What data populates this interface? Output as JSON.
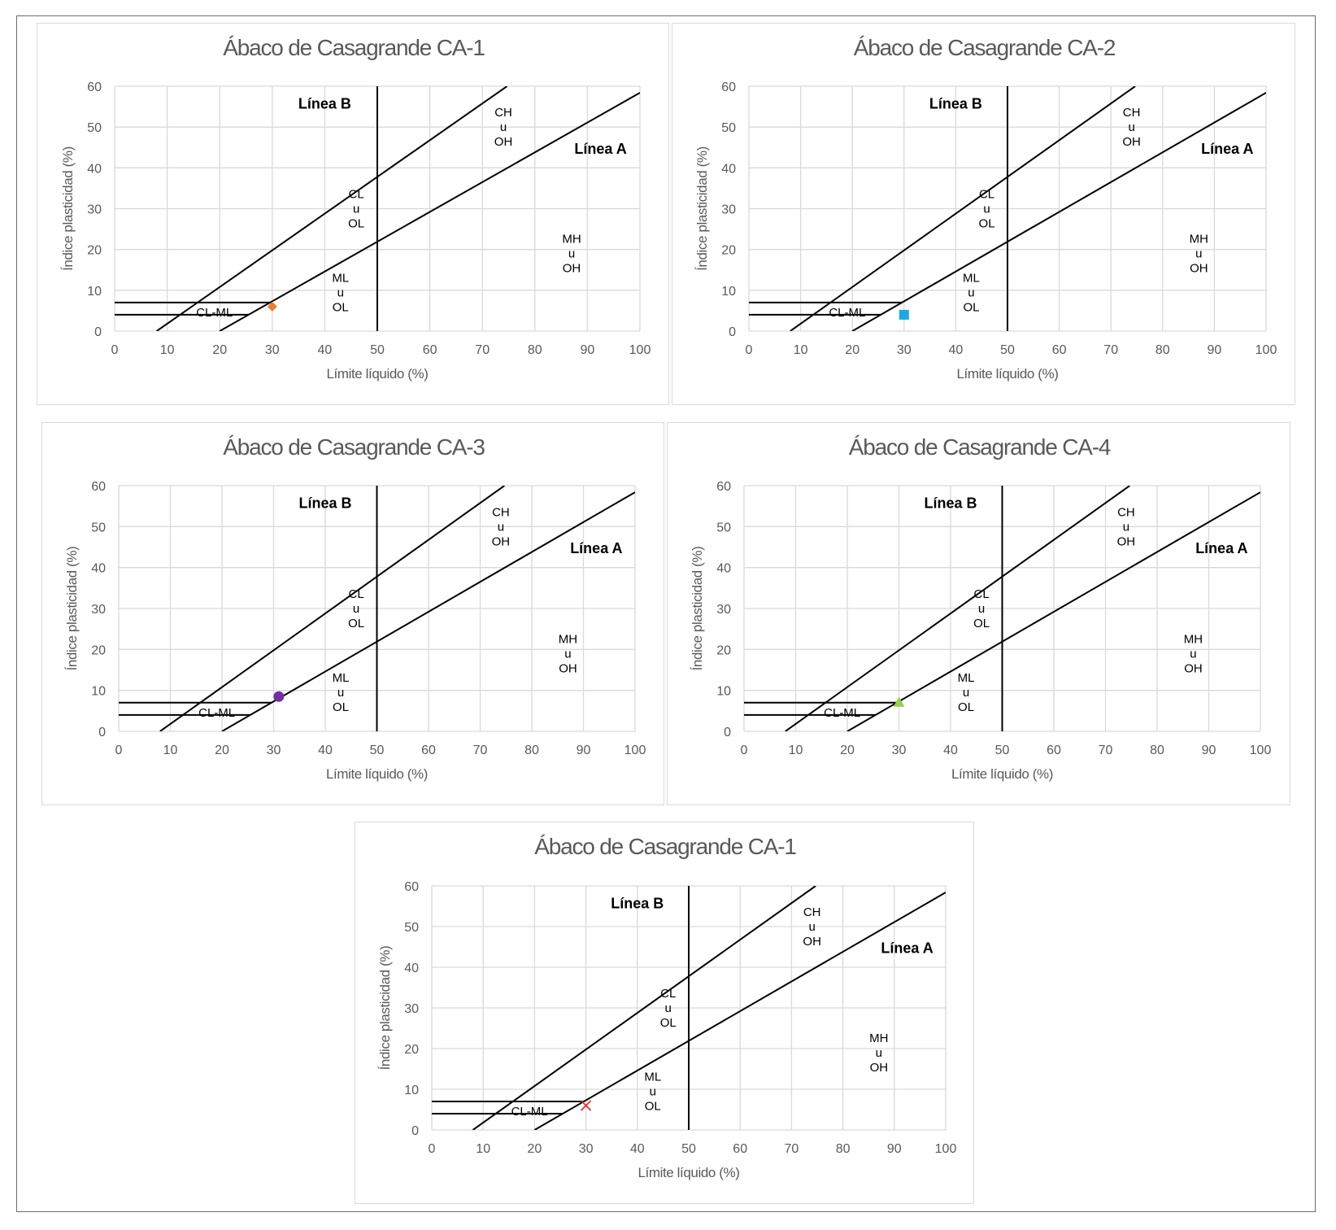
{
  "axes": {
    "xlabel": "Límite líquido (%)",
    "ylabel": "Índice plasticidad (%)",
    "xlim": [
      0,
      100
    ],
    "ylim": [
      0,
      60
    ],
    "xticks": [
      "0",
      "10",
      "20",
      "30",
      "40",
      "50",
      "60",
      "70",
      "80",
      "90",
      "100"
    ],
    "yticks": [
      "0",
      "10",
      "20",
      "30",
      "40",
      "50",
      "60"
    ]
  },
  "reference_lines": {
    "line_a_label": "Línea A",
    "line_b_label": "Línea B",
    "line_a": [
      [
        20,
        0
      ],
      [
        100,
        58.4
      ]
    ],
    "upper_u_line": [
      [
        8,
        0
      ],
      [
        74.7,
        60
      ]
    ],
    "line_b": [
      [
        50,
        0
      ],
      [
        50,
        60
      ]
    ],
    "cl_ml_upper": [
      [
        0,
        7
      ],
      [
        29.6,
        7
      ]
    ],
    "cl_ml_lower": [
      [
        0,
        4
      ],
      [
        25.5,
        4
      ]
    ]
  },
  "zones": [
    {
      "id": "ch-oh",
      "lines": [
        "CH",
        "u",
        "OH"
      ],
      "at": [
        74,
        50
      ]
    },
    {
      "id": "cl-ol",
      "lines": [
        "CL",
        "u",
        "OL"
      ],
      "at": [
        46,
        30
      ]
    },
    {
      "id": "mh-oh",
      "lines": [
        "MH",
        "u",
        "OH"
      ],
      "at": [
        87,
        19
      ]
    },
    {
      "id": "ml-ol",
      "lines": [
        "ML",
        "u",
        "OL"
      ],
      "at": [
        43,
        9.5
      ]
    },
    {
      "id": "cl-ml",
      "lines": [
        "CL-ML"
      ],
      "at": [
        19,
        4.6
      ]
    }
  ],
  "chart_data": [
    {
      "type": "scatter",
      "title": "Ábaco de Casagrande CA-1",
      "xlabel": "Límite líquido (%)",
      "ylabel": "Índice plasticidad (%)",
      "xlim": [
        0,
        100
      ],
      "ylim": [
        0,
        60
      ],
      "grid": true,
      "points": [
        {
          "x": 30,
          "y": 6
        }
      ],
      "marker": "diamond",
      "color": "#ED7D31"
    },
    {
      "type": "scatter",
      "title": "Ábaco de Casagrande CA-2",
      "xlabel": "Límite líquido (%)",
      "ylabel": "Índice plasticidad (%)",
      "xlim": [
        0,
        100
      ],
      "ylim": [
        0,
        60
      ],
      "grid": true,
      "points": [
        {
          "x": 30,
          "y": 4
        }
      ],
      "marker": "square",
      "color": "#1CA8E0"
    },
    {
      "type": "scatter",
      "title": "Ábaco de Casagrande CA-3",
      "xlabel": "Límite líquido (%)",
      "ylabel": "Índice plasticidad (%)",
      "xlim": [
        0,
        100
      ],
      "ylim": [
        0,
        60
      ],
      "grid": true,
      "points": [
        {
          "x": 31,
          "y": 8.5
        }
      ],
      "marker": "circle",
      "color": "#7030A0"
    },
    {
      "type": "scatter",
      "title": "Ábaco de Casagrande CA-4",
      "xlabel": "Límite líquido (%)",
      "ylabel": "Índice plasticidad (%)",
      "xlim": [
        0,
        100
      ],
      "ylim": [
        0,
        60
      ],
      "grid": true,
      "points": [
        {
          "x": 30,
          "y": 7
        }
      ],
      "marker": "triangle",
      "color": "#92D050"
    },
    {
      "type": "scatter",
      "title": "Ábaco de Casagrande CA-1",
      "xlabel": "Límite líquido (%)",
      "ylabel": "Índice plasticidad (%)",
      "xlim": [
        0,
        100
      ],
      "ylim": [
        0,
        60
      ],
      "grid": true,
      "points": [
        {
          "x": 30,
          "y": 6
        }
      ],
      "marker": "x",
      "color": "#E03030"
    }
  ]
}
